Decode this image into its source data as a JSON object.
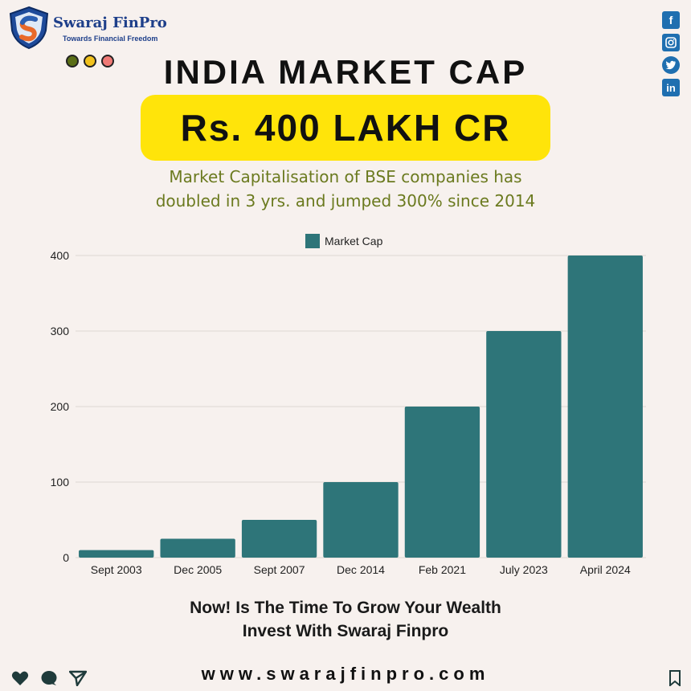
{
  "brand": {
    "name": "Swaraj FinPro",
    "tagline": "Towards Financial Freedom"
  },
  "dots": [
    "#5a6e16",
    "#f2c21d",
    "#f07a76"
  ],
  "social_icons": [
    "facebook-icon",
    "instagram-icon",
    "twitter-icon",
    "linkedin-icon"
  ],
  "headline": {
    "title": "INDIA MARKET CAP",
    "highlight": "Rs. 400 LAKH CR",
    "subtitle_line1": "Market Capitalisation of BSE companies has",
    "subtitle_line2": "doubled in 3 yrs. and jumped 300% since 2014"
  },
  "chart_data": {
    "type": "bar",
    "categories": [
      "Sept 2003",
      "Dec 2005",
      "Sept 2007",
      "Dec 2014",
      "Feb 2021",
      "July 2023",
      "April 2024"
    ],
    "series": [
      {
        "name": "Market Cap",
        "values": [
          10,
          25,
          50,
          100,
          200,
          300,
          400
        ]
      }
    ],
    "ylim": [
      0,
      400
    ],
    "yticks": [
      0,
      100,
      200,
      300,
      400
    ],
    "grid": true,
    "legend": "top-center",
    "color": "#2e7579"
  },
  "cta": {
    "line1": "Now! Is The Time To Grow Your Wealth",
    "line2": "Invest With Swaraj Finpro"
  },
  "website": "www.swarajfinpro.com",
  "bottom_icons": [
    "heart-icon",
    "comment-icon",
    "share-icon",
    "bookmark-icon"
  ]
}
